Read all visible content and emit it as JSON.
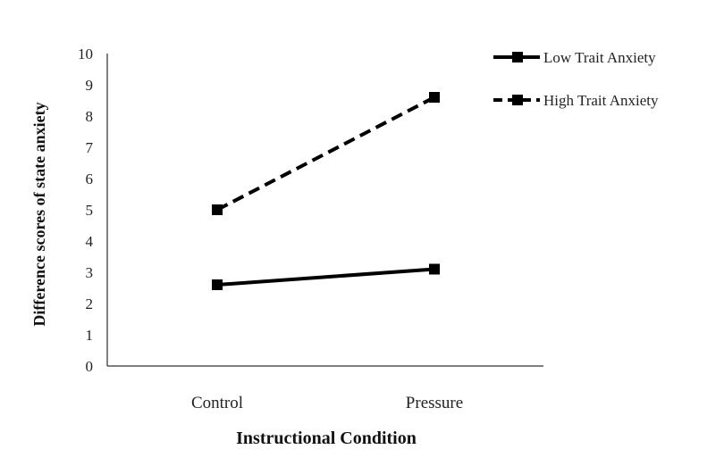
{
  "chart_data": {
    "type": "line",
    "categories": [
      "Control",
      "Pressure"
    ],
    "series": [
      {
        "name": "Low Trait Anxiety",
        "values": [
          2.6,
          3.1
        ],
        "line_style": "solid",
        "color": "#000000"
      },
      {
        "name": "High Trait Anxiety",
        "values": [
          5.0,
          8.6
        ],
        "line_style": "dashed",
        "color": "#000000"
      }
    ],
    "xlabel": "Instructional Condition",
    "ylabel": "Difference scores of state anxiety",
    "ylim": [
      0,
      10
    ],
    "yticks": [
      "0",
      "1",
      "2",
      "3",
      "4",
      "5",
      "6",
      "7",
      "8",
      "9",
      "10"
    ],
    "grid": false,
    "legend_position": "top-right"
  }
}
